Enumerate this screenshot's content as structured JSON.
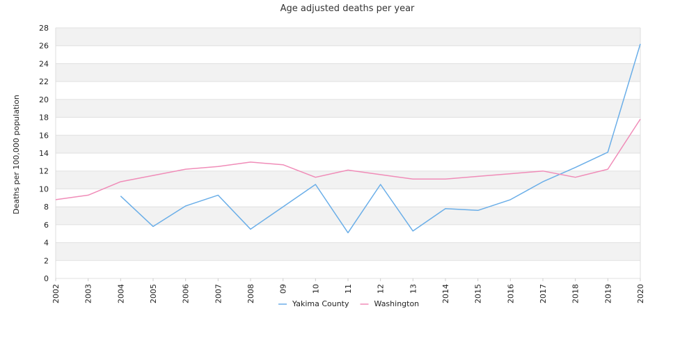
{
  "chart_data": {
    "type": "line",
    "title": "Age adjusted deaths per year",
    "xlabel": "",
    "ylabel": "Deaths per 100,000 population",
    "categories": [
      "2002",
      "2003",
      "2004",
      "2005",
      "2006",
      "2007",
      "2008",
      "09",
      "10",
      "11",
      "12",
      "13",
      "2014",
      "2015",
      "2016",
      "2017",
      "2018",
      "2019",
      "2020"
    ],
    "ylim": [
      0,
      28
    ],
    "yticks": [
      0,
      2,
      4,
      6,
      8,
      10,
      12,
      14,
      16,
      18,
      20,
      22,
      24,
      26,
      28
    ],
    "grid": "horizontal alternating bands",
    "legend": "bottom-center",
    "series": [
      {
        "name": "Yakima County",
        "color": "#6aaee8",
        "values": [
          null,
          null,
          9.2,
          5.8,
          8.1,
          9.3,
          5.5,
          8.0,
          10.5,
          5.1,
          10.5,
          5.3,
          7.8,
          7.6,
          8.8,
          10.8,
          12.4,
          14.1,
          26.2
        ]
      },
      {
        "name": "Washington",
        "color": "#f08cb8",
        "values": [
          8.8,
          9.3,
          10.8,
          11.5,
          12.2,
          12.5,
          13.0,
          12.7,
          11.3,
          12.1,
          11.6,
          11.1,
          11.1,
          11.4,
          11.7,
          12.0,
          11.3,
          12.2,
          17.8
        ]
      }
    ]
  }
}
